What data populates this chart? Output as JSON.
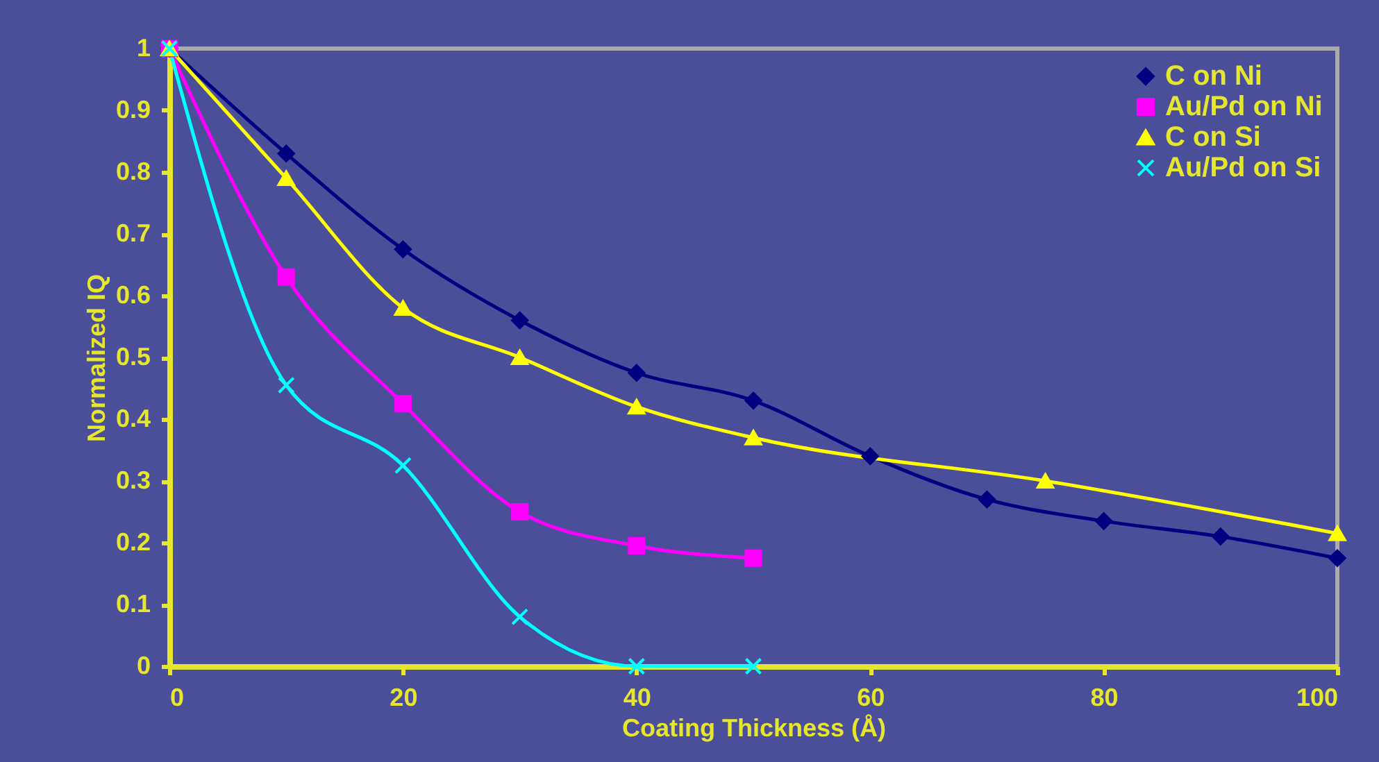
{
  "chart_data": {
    "type": "line",
    "xlabel": "Coating Thickness (Å)",
    "ylabel": "Normalized IQ",
    "xlim": [
      0,
      100
    ],
    "xticks": [
      0,
      20,
      40,
      60,
      80,
      100
    ],
    "ylim": [
      0,
      1
    ],
    "yticks": [
      0,
      0.1,
      0.2,
      0.3,
      0.4,
      0.5,
      0.6,
      0.7,
      0.8,
      0.9,
      1
    ],
    "grid": false,
    "legend": "top right",
    "series": [
      {
        "name": "C on Ni",
        "color": "#000080",
        "marker": "diamond",
        "x": [
          0,
          10,
          20,
          30,
          40,
          50,
          60,
          70,
          80,
          90,
          100
        ],
        "values": [
          1,
          0.83,
          0.675,
          0.56,
          0.475,
          0.43,
          0.34,
          0.27,
          0.235,
          0.21,
          0.175
        ]
      },
      {
        "name": "Au/Pd on Ni",
        "color": "#ff00ff",
        "marker": "square",
        "x": [
          0,
          10,
          20,
          30,
          40,
          50
        ],
        "values": [
          1,
          0.63,
          0.425,
          0.25,
          0.195,
          0.175
        ]
      },
      {
        "name": "C on Si",
        "color": "#ffff00",
        "marker": "triangle",
        "x": [
          0,
          10,
          20,
          30,
          40,
          50,
          75,
          100
        ],
        "values": [
          1,
          0.79,
          0.58,
          0.5,
          0.42,
          0.37,
          0.3,
          0.215
        ]
      },
      {
        "name": "Au/Pd on Si",
        "color": "#00ffff",
        "marker": "cross",
        "x": [
          0,
          10,
          20,
          30,
          40,
          50
        ],
        "values": [
          1,
          0.455,
          0.325,
          0.08,
          0,
          0
        ]
      }
    ]
  }
}
